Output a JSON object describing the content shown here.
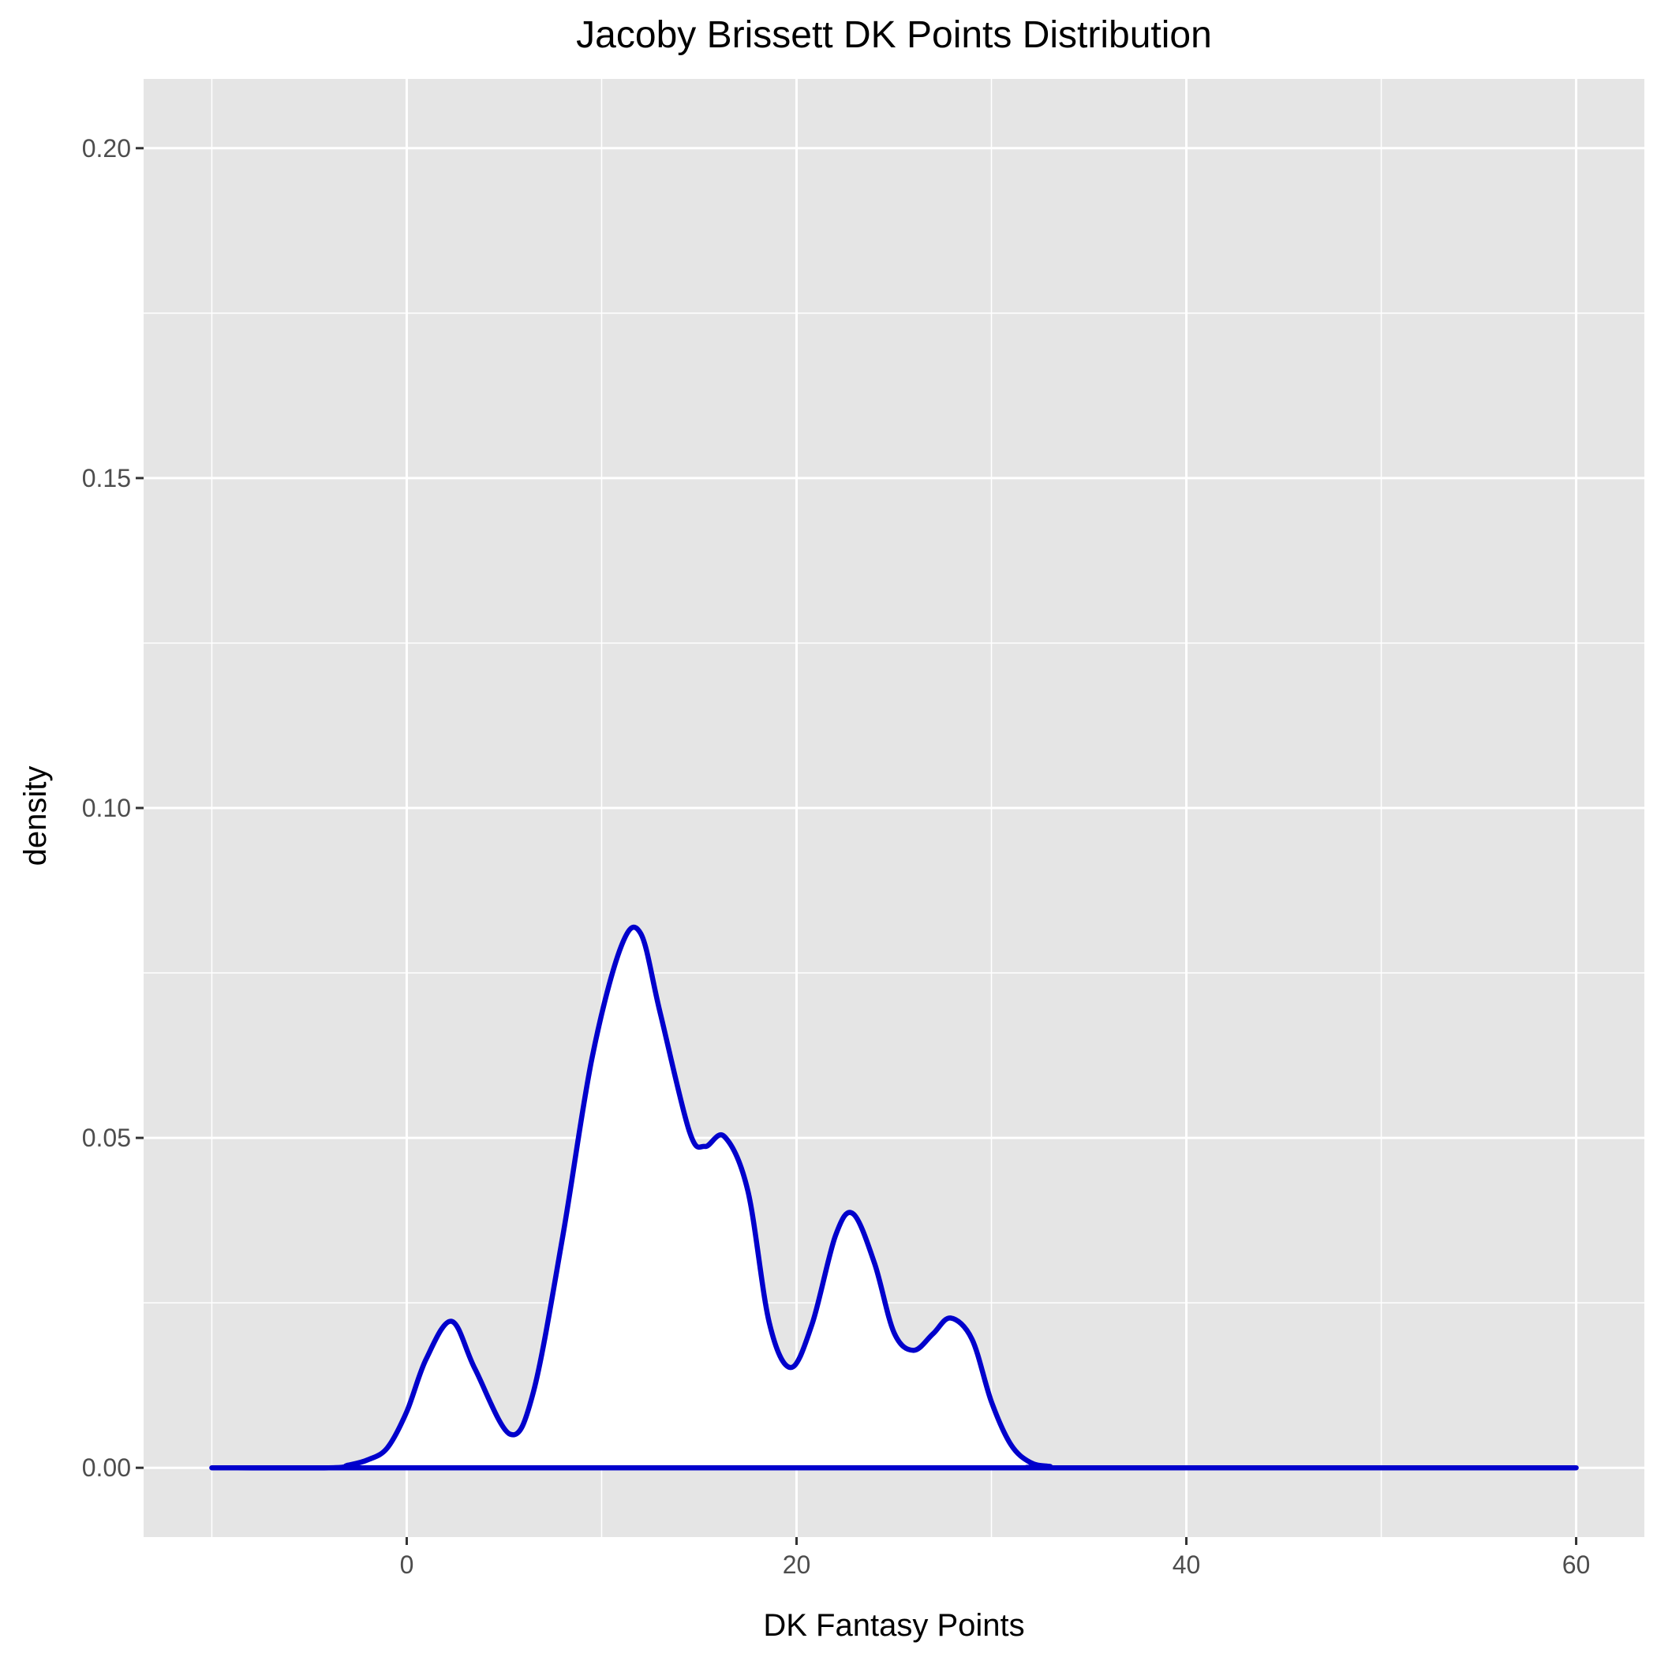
{
  "chart_data": {
    "type": "area",
    "title": "Jacoby Brissett DK Points Distribution",
    "xlabel": "DK Fantasy Points",
    "ylabel": "density",
    "xlim": [
      -13.5,
      63.5
    ],
    "ylim": [
      -0.0105,
      0.2105
    ],
    "x_ticks": [
      0,
      20,
      40,
      60
    ],
    "x_tick_labels": [
      "0",
      "20",
      "40",
      "60"
    ],
    "y_ticks": [
      0.0,
      0.05,
      0.1,
      0.15,
      0.2
    ],
    "y_tick_labels": [
      "0.00",
      "0.05",
      "0.10",
      "0.15",
      "0.20"
    ],
    "grid": true,
    "legend": "none",
    "colors": {
      "panel_background": "#E5E5E5",
      "grid": "#FFFFFF",
      "line": "#0000CC",
      "fill": "#FFFFFF"
    },
    "series": [
      {
        "x": [
          -10,
          -4,
          -3,
          -2,
          -1,
          0,
          1,
          2.3,
          3.5,
          5.3,
          6.5,
          8,
          9.5,
          11,
          12,
          13,
          14.5,
          15.3,
          16.3,
          17.5,
          18.6,
          19.7,
          20.8,
          22,
          22.9,
          24,
          25,
          26,
          27,
          27.9,
          29,
          30,
          31,
          32,
          33,
          34,
          60
        ],
        "y": [
          0,
          0,
          0.0004,
          0.0012,
          0.003,
          0.0085,
          0.0165,
          0.0222,
          0.015,
          0.0051,
          0.0115,
          0.035,
          0.062,
          0.079,
          0.081,
          0.069,
          0.051,
          0.0487,
          0.0502,
          0.042,
          0.022,
          0.0152,
          0.0218,
          0.0352,
          0.0385,
          0.031,
          0.0205,
          0.0178,
          0.0203,
          0.0227,
          0.0195,
          0.01,
          0.0035,
          0.0008,
          0.0002,
          0,
          0
        ]
      }
    ]
  }
}
